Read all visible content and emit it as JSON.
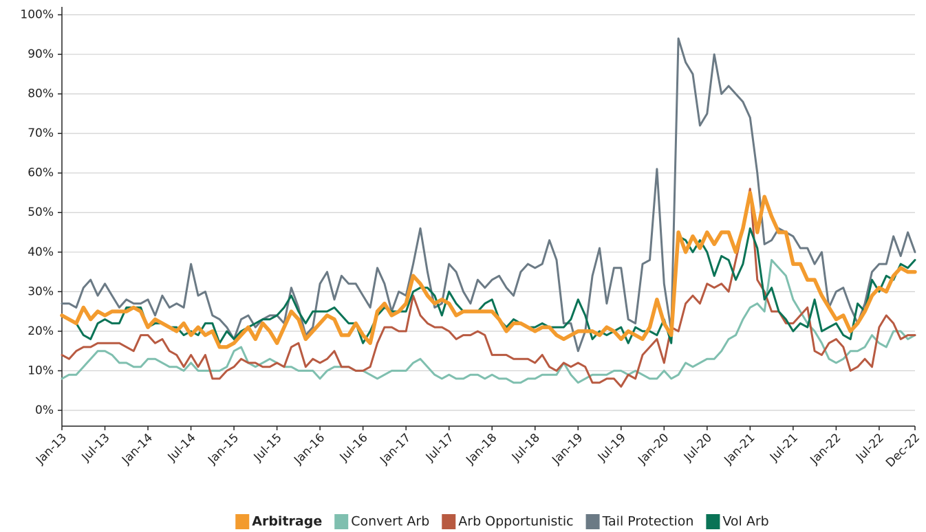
{
  "chart_data": {
    "type": "line",
    "categories": [
      "Jan-13",
      null,
      null,
      null,
      null,
      null,
      "Jul-13",
      null,
      null,
      null,
      null,
      null,
      "Jan-14",
      null,
      null,
      null,
      null,
      null,
      "Jul-14",
      null,
      null,
      null,
      null,
      null,
      "Jan-15",
      null,
      null,
      null,
      null,
      null,
      "Jul-15",
      null,
      null,
      null,
      null,
      null,
      "Jan-16",
      null,
      null,
      null,
      null,
      null,
      "Jul-16",
      null,
      null,
      null,
      null,
      null,
      "Jan-17",
      null,
      null,
      null,
      null,
      null,
      "Jul-17",
      null,
      null,
      null,
      null,
      null,
      "Jan-18",
      null,
      null,
      null,
      null,
      null,
      "Jul-18",
      null,
      null,
      null,
      null,
      null,
      "Jan-19",
      null,
      null,
      null,
      null,
      null,
      "Jul-19",
      null,
      null,
      null,
      null,
      null,
      "Jan-20",
      null,
      null,
      null,
      null,
      null,
      "Jul-20",
      null,
      null,
      null,
      null,
      null,
      "Jan-21",
      null,
      null,
      null,
      null,
      null,
      "Jul-21",
      null,
      null,
      null,
      null,
      null,
      "Jan-22",
      null,
      null,
      null,
      null,
      null,
      "Jul-22",
      null,
      null,
      null,
      null,
      "Dec-22"
    ],
    "series": [
      {
        "name": "Arbitrage",
        "color": "#f39b2e",
        "emphasis": true,
        "values": [
          24,
          23,
          22,
          26,
          23,
          25,
          24,
          25,
          25,
          25,
          26,
          25,
          21,
          23,
          22,
          21,
          20,
          22,
          19,
          21,
          19,
          20,
          16,
          16,
          17,
          19,
          21,
          18,
          22,
          20,
          17,
          21,
          25,
          23,
          18,
          20,
          22,
          24,
          23,
          19,
          19,
          22,
          19,
          17,
          25,
          27,
          24,
          25,
          27,
          34,
          32,
          29,
          27,
          28,
          27,
          24,
          25,
          25,
          25,
          25,
          25,
          23,
          20,
          22,
          22,
          21,
          20,
          21,
          21,
          19,
          18,
          19,
          20,
          20,
          20,
          19,
          21,
          20,
          18,
          20,
          19,
          18,
          21,
          28,
          22,
          19,
          45,
          40,
          44,
          41,
          45,
          42,
          45,
          45,
          40,
          46,
          55,
          45,
          54,
          49,
          45,
          45,
          37,
          37,
          33,
          33,
          29,
          26,
          23,
          24,
          20,
          22,
          25,
          29,
          31,
          30,
          34,
          36,
          35,
          35
        ]
      },
      {
        "name": "Convert Arb",
        "color": "#7fbfaf",
        "values": [
          8,
          9,
          9,
          11,
          13,
          15,
          15,
          14,
          12,
          12,
          11,
          11,
          13,
          13,
          12,
          11,
          11,
          10,
          12,
          10,
          10,
          10,
          10,
          11,
          15,
          16,
          12,
          11,
          12,
          13,
          12,
          11,
          11,
          10,
          10,
          10,
          8,
          10,
          11,
          11,
          11,
          10,
          10,
          9,
          8,
          9,
          10,
          10,
          10,
          12,
          13,
          11,
          9,
          8,
          9,
          8,
          8,
          9,
          9,
          8,
          9,
          8,
          8,
          7,
          7,
          8,
          8,
          9,
          9,
          9,
          12,
          9,
          7,
          8,
          9,
          9,
          9,
          10,
          10,
          9,
          10,
          9,
          8,
          8,
          10,
          8,
          9,
          12,
          11,
          12,
          13,
          13,
          15,
          18,
          19,
          23,
          26,
          27,
          25,
          38,
          36,
          34,
          28,
          25,
          22,
          20,
          17,
          13,
          12,
          13,
          15,
          15,
          16,
          19,
          17,
          16,
          20,
          20,
          18,
          19
        ]
      },
      {
        "name": "Arb Opportunistic",
        "color": "#b85a41",
        "values": [
          14,
          13,
          15,
          16,
          16,
          17,
          17,
          17,
          17,
          16,
          15,
          19,
          19,
          17,
          18,
          15,
          14,
          11,
          14,
          11,
          14,
          8,
          8,
          10,
          11,
          13,
          12,
          12,
          11,
          11,
          12,
          11,
          16,
          17,
          11,
          13,
          12,
          13,
          15,
          11,
          11,
          10,
          10,
          11,
          17,
          21,
          21,
          20,
          20,
          29,
          24,
          22,
          21,
          21,
          20,
          18,
          19,
          19,
          20,
          19,
          14,
          14,
          14,
          13,
          13,
          13,
          12,
          14,
          11,
          10,
          12,
          11,
          12,
          11,
          7,
          7,
          8,
          8,
          6,
          9,
          8,
          14,
          16,
          18,
          12,
          21,
          20,
          27,
          29,
          27,
          32,
          31,
          32,
          30,
          38,
          46,
          56,
          33,
          30,
          25,
          25,
          22,
          22,
          24,
          26,
          15,
          14,
          17,
          18,
          16,
          10,
          11,
          13,
          11,
          21,
          24,
          22,
          18,
          19,
          19
        ]
      },
      {
        "name": "Tail Protection",
        "color": "#6b7a85",
        "values": [
          27,
          27,
          26,
          31,
          33,
          29,
          32,
          29,
          26,
          28,
          27,
          27,
          28,
          24,
          29,
          26,
          27,
          26,
          37,
          29,
          30,
          24,
          23,
          21,
          18,
          23,
          24,
          21,
          23,
          24,
          24,
          22,
          31,
          26,
          19,
          21,
          32,
          35,
          28,
          34,
          32,
          32,
          29,
          26,
          36,
          32,
          25,
          30,
          29,
          37,
          46,
          35,
          26,
          27,
          37,
          35,
          30,
          27,
          33,
          31,
          33,
          34,
          31,
          29,
          35,
          37,
          36,
          37,
          43,
          38,
          22,
          22,
          15,
          20,
          34,
          41,
          27,
          36,
          36,
          23,
          22,
          37,
          38,
          61,
          32,
          20,
          94,
          88,
          85,
          72,
          75,
          90,
          80,
          82,
          80,
          78,
          74,
          60,
          42,
          43,
          46,
          45,
          44,
          41,
          41,
          37,
          40,
          26,
          30,
          31,
          26,
          22,
          27,
          35,
          37,
          37,
          44,
          39,
          45,
          40
        ]
      },
      {
        "name": "Vol Arb",
        "color": "#0a7356",
        "values": [
          24,
          23,
          22,
          19,
          18,
          22,
          23,
          22,
          22,
          26,
          26,
          26,
          21,
          22,
          22,
          21,
          21,
          19,
          20,
          19,
          22,
          22,
          17,
          20,
          18,
          20,
          21,
          22,
          23,
          23,
          24,
          26,
          29,
          25,
          22,
          25,
          25,
          25,
          26,
          24,
          22,
          22,
          17,
          20,
          24,
          26,
          25,
          25,
          25,
          30,
          31,
          31,
          29,
          24,
          30,
          27,
          25,
          25,
          25,
          27,
          28,
          23,
          21,
          23,
          22,
          21,
          21,
          22,
          21,
          21,
          21,
          23,
          28,
          24,
          18,
          20,
          19,
          20,
          21,
          17,
          21,
          20,
          20,
          19,
          23,
          17,
          44,
          43,
          40,
          43,
          40,
          34,
          39,
          38,
          33,
          37,
          46,
          41,
          28,
          31,
          25,
          23,
          20,
          22,
          21,
          28,
          20,
          21,
          22,
          19,
          18,
          27,
          25,
          33,
          30,
          34,
          33,
          37,
          36,
          38
        ]
      }
    ],
    "ylim": [
      -4,
      102
    ],
    "yticks": [
      {
        "value": 0,
        "label": "0%"
      },
      {
        "value": 10,
        "label": "10%"
      },
      {
        "value": 20,
        "label": "20%"
      },
      {
        "value": 30,
        "label": "30%"
      },
      {
        "value": 40,
        "label": "40%"
      },
      {
        "value": 50,
        "label": "50%"
      },
      {
        "value": 60,
        "label": "60%"
      },
      {
        "value": 70,
        "label": "70%"
      },
      {
        "value": 80,
        "label": "80%"
      },
      {
        "value": 90,
        "label": "90%"
      },
      {
        "value": 100,
        "label": "100%"
      }
    ],
    "grid": true,
    "legend": "bottom"
  }
}
